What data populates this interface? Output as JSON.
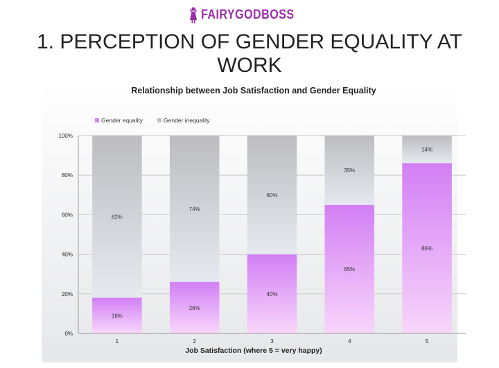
{
  "brand": {
    "name": "FAIRYGODBOSS",
    "color": "#9b2fa8"
  },
  "page_title": "1. PERCEPTION OF GENDER EQUALITY AT WORK",
  "chart_data": {
    "type": "bar",
    "stacked": true,
    "percent": true,
    "title": "Relationship between Job Satisfaction and Gender Equality",
    "xlabel": "Job Satisfaction (where 5 = very happy)",
    "ylabel": "",
    "categories": [
      "1",
      "2",
      "3",
      "4",
      "5"
    ],
    "ylim": [
      0,
      100
    ],
    "yticks": [
      "0%",
      "20%",
      "40%",
      "60%",
      "80%",
      "100%"
    ],
    "legend_position": "top-left",
    "grid": true,
    "series": [
      {
        "name": "Gender equality",
        "values": [
          18,
          26,
          40,
          65,
          86
        ],
        "labels": [
          "18%",
          "26%",
          "40%",
          "65%",
          "86%"
        ],
        "color": "#d582f5"
      },
      {
        "name": "Gender inequality",
        "values": [
          82,
          74,
          60,
          35,
          14
        ],
        "labels": [
          "82%",
          "74%",
          "60%",
          "35%",
          "14%"
        ],
        "color": "#c0c0c4"
      }
    ]
  }
}
